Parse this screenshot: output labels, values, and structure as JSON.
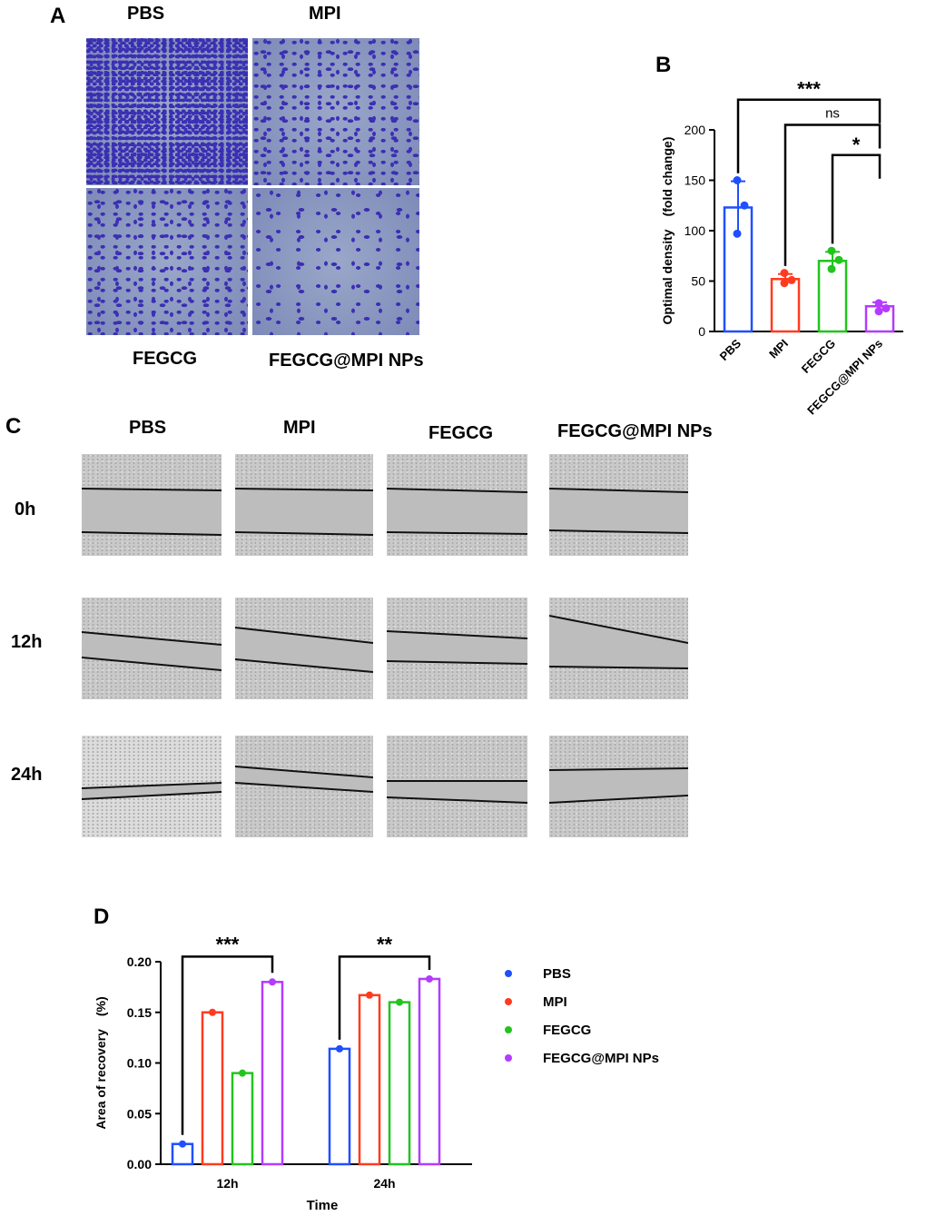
{
  "panels": {
    "a": "A",
    "b": "B",
    "c": "C",
    "d": "D"
  },
  "panel_a": {
    "labels": {
      "pbs": "PBS",
      "mpi": "MPI",
      "fegcg": "FEGCG",
      "combo": "FEGCG@MPI NPs"
    }
  },
  "panel_c": {
    "columns": [
      "PBS",
      "MPI",
      "FEGCG",
      "FEGCG@MPI NPs"
    ],
    "rows": [
      "0h",
      "12h",
      "24h"
    ]
  },
  "chart_data": [
    {
      "type": "bar",
      "ylabel": "Optimal density　(fold change)",
      "categories": [
        "PBS",
        "MPI",
        "FEGCG",
        "FEGCG@MPI NPs"
      ],
      "values": [
        123,
        52,
        70,
        25
      ],
      "points": [
        [
          150,
          125,
          97
        ],
        [
          58,
          51,
          48
        ],
        [
          80,
          71,
          62
        ],
        [
          28,
          23,
          20
        ]
      ],
      "error": [
        26,
        5,
        9,
        4
      ],
      "colors": [
        "#1f4fff",
        "#ff3b1f",
        "#22c41e",
        "#b43bff"
      ],
      "ylim": [
        0,
        200
      ],
      "yticks": [
        0,
        50,
        100,
        150,
        200
      ],
      "significance": [
        {
          "from": 0,
          "to": 3,
          "label": "***"
        },
        {
          "from": 1,
          "to": 3,
          "label": "ns"
        },
        {
          "from": 2,
          "to": 3,
          "label": "*"
        }
      ]
    },
    {
      "type": "bar",
      "xlabel": "Time",
      "ylabel": "Area of recovery　(%)",
      "categories": [
        "12h",
        "24h"
      ],
      "series": [
        {
          "name": "PBS",
          "values": [
            0.02,
            0.114
          ],
          "color": "#1f4fff"
        },
        {
          "name": "MPI",
          "values": [
            0.15,
            0.167
          ],
          "color": "#ff3b1f"
        },
        {
          "name": "FEGCG",
          "values": [
            0.09,
            0.16
          ],
          "color": "#22c41e"
        },
        {
          "name": "FEGCG@MPI NPs",
          "values": [
            0.18,
            0.183
          ],
          "color": "#b43bff"
        }
      ],
      "ylim": [
        0,
        0.2
      ],
      "yticks": [
        "0.00",
        "0.05",
        "0.10",
        "0.15",
        "0.20"
      ],
      "legend": "right",
      "significance": [
        {
          "group": 0,
          "from": 0,
          "to": 3,
          "label": "***"
        },
        {
          "group": 1,
          "from": 0,
          "to": 3,
          "label": "**"
        }
      ]
    }
  ]
}
